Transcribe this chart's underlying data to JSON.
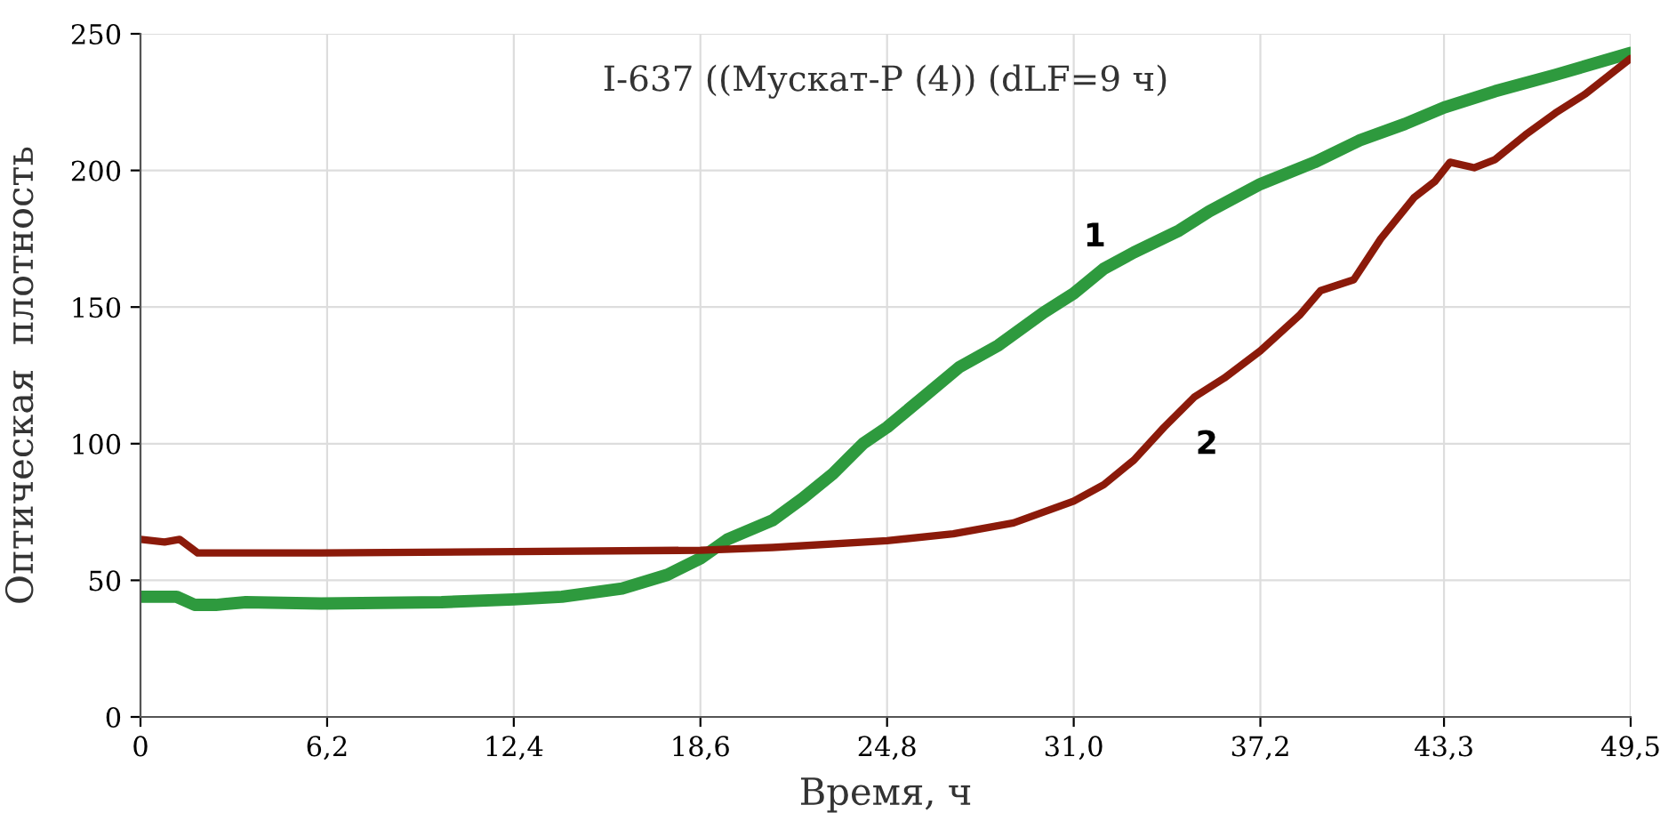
{
  "chart_data": {
    "type": "line",
    "title": "I-637 ((Мускат-Р (4)) (dLF=9 ч)",
    "xlabel": "Время, ч",
    "ylabel": "Оптическая  плотность",
    "xlim": [
      0,
      49.5
    ],
    "xticks": [
      {
        "value": 0,
        "label": "0"
      },
      {
        "value": 6.2,
        "label": "6,2"
      },
      {
        "value": 12.4,
        "label": "12,4"
      },
      {
        "value": 18.6,
        "label": "18,6"
      },
      {
        "value": 24.8,
        "label": "24,8"
      },
      {
        "value": 31.0,
        "label": "31,0"
      },
      {
        "value": 37.2,
        "label": "37,2"
      },
      {
        "value": 43.3,
        "label": "43,3"
      },
      {
        "value": 49.5,
        "label": "49,5"
      }
    ],
    "ylim": [
      0,
      250
    ],
    "yticks": [
      0,
      50,
      100,
      150,
      200,
      250
    ],
    "grid": true,
    "marker": "none",
    "line_style": "solid",
    "series": [
      {
        "color": "#2e9a3e",
        "x": [
          0,
          1.2,
          1.8,
          2.5,
          3.5,
          6,
          10,
          12.4,
          14,
          16,
          17.5,
          18.6,
          19.5,
          21,
          22,
          23,
          24,
          24.8,
          26,
          27.2,
          28.5,
          30,
          31,
          32,
          33,
          34.5,
          35.5,
          37.2,
          39,
          40.5,
          42,
          43.3,
          45,
          47,
          49.5
        ],
        "values": [
          44,
          44,
          41,
          41,
          42,
          41.5,
          42,
          43,
          44,
          47,
          52,
          58,
          65,
          72,
          80,
          89,
          100,
          106,
          117,
          128,
          136,
          148,
          155,
          164,
          170,
          178,
          185,
          195,
          203,
          211,
          217,
          223,
          229,
          235,
          243
        ]
      },
      {
        "color": "#8b1a0a",
        "x": [
          0,
          0.8,
          1.3,
          1.9,
          3,
          6,
          12.4,
          18.6,
          21,
          24.8,
          27,
          29,
          31,
          32,
          33,
          34,
          35,
          36,
          37.2,
          38.5,
          39.2,
          40.3,
          41.2,
          42.3,
          43,
          43.5,
          44.3,
          45,
          46,
          47,
          48,
          49.5
        ],
        "values": [
          65,
          64,
          65,
          60,
          60,
          60,
          60.5,
          61,
          62,
          64.5,
          67,
          71,
          79,
          85,
          94,
          106,
          117,
          124,
          134,
          147,
          156,
          160,
          175,
          190,
          196,
          203,
          201,
          204,
          213,
          221,
          228,
          241
        ]
      }
    ],
    "annotations": [
      {
        "text": "1",
        "x": 31.7,
        "y": 161
      },
      {
        "text": "2",
        "x": 34.6,
        "y": 114
      }
    ]
  }
}
